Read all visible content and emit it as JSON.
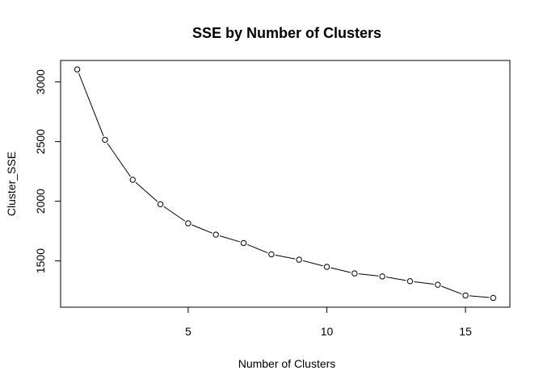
{
  "chart_data": {
    "type": "line",
    "title": "SSE by Number of Clusters",
    "xlabel": "Number of Clusters",
    "ylabel": "Cluster_SSE",
    "x": [
      1,
      2,
      3,
      4,
      5,
      6,
      7,
      8,
      9,
      10,
      11,
      12,
      13,
      14,
      15,
      16
    ],
    "series": [
      {
        "values": [
          3105,
          2515,
          2180,
          1975,
          1815,
          1720,
          1650,
          1555,
          1510,
          1450,
          1395,
          1370,
          1330,
          1300,
          1210,
          1190
        ],
        "marker": "open-circle",
        "line_style": "solid",
        "color": "#000000"
      }
    ],
    "xlim": [
      0.4,
      16.6
    ],
    "ylim": [
      1112,
      3180
    ],
    "xticks": [
      5,
      10,
      15
    ],
    "yticks": [
      1500,
      2000,
      2500,
      3000
    ],
    "grid": false,
    "legend": "none"
  }
}
